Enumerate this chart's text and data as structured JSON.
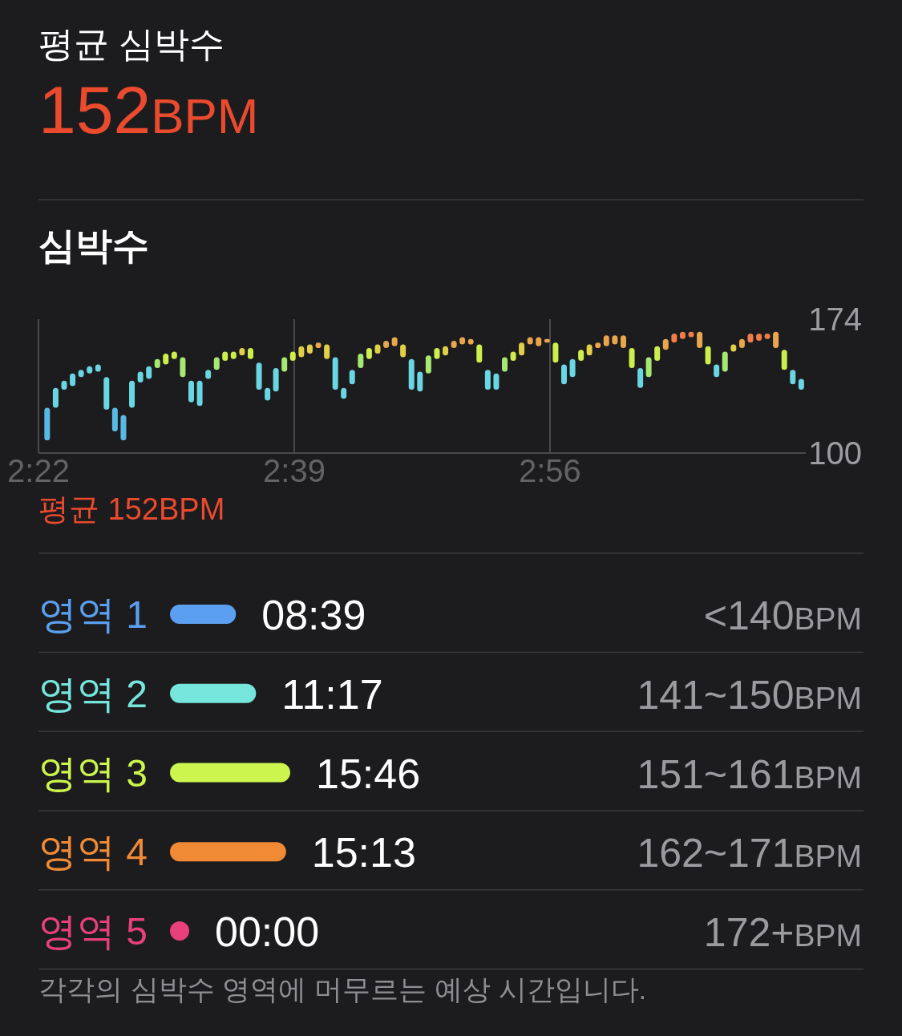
{
  "chart_data": [
    {
      "type": "other",
      "title": "평균 심박수",
      "annotations": [
        "152BPM"
      ]
    },
    {
      "type": "bar",
      "title": "심박수",
      "x": [
        2.3763,
        2.3857,
        2.3951,
        2.4045,
        2.4139,
        2.4233,
        2.4327,
        2.442,
        2.4514,
        2.4608,
        2.4702,
        2.4796,
        2.489,
        2.4984,
        2.5077,
        2.5171,
        2.5265,
        2.5359,
        2.5453,
        2.5547,
        2.5641,
        2.5734,
        2.5828,
        2.5922,
        2.6016,
        2.611,
        2.6204,
        2.6297,
        2.6391,
        2.6485,
        2.6579,
        2.6673,
        2.6767,
        2.6861,
        2.6955,
        2.7048,
        2.7142,
        2.7236,
        2.733,
        2.7424,
        2.7518,
        2.7612,
        2.7705,
        2.7799,
        2.7893,
        2.7987,
        2.8081,
        2.8175,
        2.8269,
        2.8362,
        2.8456,
        2.855,
        2.8644,
        2.8738,
        2.8832,
        2.8926,
        2.9019,
        2.9113,
        2.9207,
        2.9301,
        2.9395,
        2.9489,
        2.9583,
        2.9677,
        2.977,
        2.9864,
        2.9958,
        3.0052,
        3.0146,
        3.024,
        3.0334,
        3.0427,
        3.0521,
        3.0615,
        3.0709,
        3.0803,
        3.0897,
        3.0991,
        3.1084,
        3.1178,
        3.1272,
        3.1366,
        3.146,
        3.1554,
        3.1648,
        3.1741,
        3.1835,
        3.1929,
        3.2023,
        3.2117
      ],
      "base": [
        107,
        125,
        135,
        137,
        142,
        144,
        145,
        124,
        112,
        107,
        125,
        139,
        141,
        147,
        149,
        152,
        142,
        128,
        126,
        141,
        146,
        151,
        152,
        154,
        152,
        135,
        129,
        134,
        145,
        151,
        153,
        155,
        158,
        152,
        135,
        130,
        138,
        147,
        152,
        155,
        158,
        159,
        153,
        135,
        134,
        144,
        152,
        154,
        158,
        160,
        160,
        150,
        135,
        135,
        145,
        151,
        154,
        160,
        159,
        161,
        150,
        138,
        142,
        151,
        154,
        158,
        159,
        160,
        158,
        147,
        136,
        142,
        151,
        157,
        161,
        163,
        164,
        158,
        149,
        142,
        145,
        156,
        158,
        161,
        162,
        163,
        158,
        146,
        138,
        135
      ],
      "values": [
        18,
        11,
        5,
        7,
        4,
        4,
        4,
        18,
        13,
        14,
        15,
        6,
        7,
        5,
        6,
        4,
        11,
        12,
        14,
        5,
        7,
        5,
        4,
        4,
        6,
        15,
        7,
        13,
        8,
        5,
        6,
        5,
        3,
        8,
        18,
        6,
        8,
        8,
        6,
        5,
        4,
        5,
        7,
        17,
        11,
        10,
        6,
        5,
        4,
        4,
        3,
        10,
        11,
        9,
        8,
        5,
        7,
        4,
        5,
        2,
        11,
        11,
        10,
        6,
        6,
        3,
        6,
        5,
        7,
        11,
        11,
        11,
        8,
        6,
        5,
        4,
        3,
        9,
        10,
        7,
        11,
        4,
        5,
        5,
        4,
        3,
        9,
        11,
        8,
        6
      ],
      "colors": [
        "#5ab8e4",
        "#6ad6e2",
        "#6ad6e2",
        "#6ad6e2",
        "#6ad6e2",
        "#6ad6e2",
        "#6ad6e2",
        "#6ad6e2",
        "#5ab8e4",
        "#5ab8e4",
        "#6ad6e2",
        "#6ad6e2",
        "#6ad6e2",
        "#a6e872",
        "#cdee4c",
        "#cdee4c",
        "#a6e872",
        "#6ad6e2",
        "#6ad6e2",
        "#6ad6e2",
        "#a6e872",
        "#cdee4c",
        "#cdee4c",
        "#e2cf48",
        "#cdee4c",
        "#6ad6e2",
        "#6ad6e2",
        "#6ad6e2",
        "#a6e872",
        "#cdee4c",
        "#e2cf48",
        "#e2cf48",
        "#eaa64c",
        "#e2cf48",
        "#6ad6e2",
        "#6ad6e2",
        "#6ad6e2",
        "#a6e872",
        "#cdee4c",
        "#e2cf48",
        "#eaa64c",
        "#eaa64c",
        "#e2cf48",
        "#6ad6e2",
        "#6ad6e2",
        "#a6e872",
        "#cdee4c",
        "#e2cf48",
        "#eaa64c",
        "#eaa64c",
        "#eaa64c",
        "#cdee4c",
        "#6ad6e2",
        "#6ad6e2",
        "#a6e872",
        "#cdee4c",
        "#e2cf48",
        "#eaa64c",
        "#eaa64c",
        "#eaa64c",
        "#cdee4c",
        "#6ad6e2",
        "#6ad6e2",
        "#cdee4c",
        "#e2cf48",
        "#eaa64c",
        "#eaa64c",
        "#eaa64c",
        "#eaa64c",
        "#cdee4c",
        "#6ad6e2",
        "#a6e872",
        "#cdee4c",
        "#eaa64c",
        "#ee7d47",
        "#ee7d47",
        "#ee7d47",
        "#eaa64c",
        "#cdee4c",
        "#6ad6e2",
        "#a6e872",
        "#e2cf48",
        "#eaa64c",
        "#ee7d47",
        "#ee7d47",
        "#ee7d47",
        "#eaa64c",
        "#cdee4c",
        "#6ad6e2",
        "#6ad6e2"
      ],
      "xlim": [
        2.3667,
        3.2167
      ],
      "xticks": [
        {
          "value": 2.3667,
          "label": "2:22"
        },
        {
          "value": 2.65,
          "label": "2:39"
        },
        {
          "value": 2.9333,
          "label": "2:56"
        }
      ],
      "ylim": [
        100,
        174
      ],
      "yticks": [
        100,
        174
      ],
      "grid": "x",
      "annotations": [
        "평균 152BPM"
      ]
    },
    {
      "type": "bar",
      "orientation": "horizontal",
      "categories": [
        "영역 1",
        "영역 2",
        "영역 3",
        "영역 4",
        "영역 5"
      ],
      "values": [
        8.65,
        11.2833,
        15.7667,
        15.2167,
        0
      ],
      "colors": [
        "#5b9ff0",
        "#76e6dc",
        "#ccf54e",
        "#f08a35",
        "#e8407a"
      ],
      "value_labels": [
        "08:39",
        "11:17",
        "15:46",
        "15:13",
        "00:00"
      ],
      "annotations": [
        "<140BPM",
        "141~150BPM",
        "151~161BPM",
        "162~171BPM",
        "172+BPM",
        "각각의 심박수 영역에 머무르는 예상 시간입니다."
      ]
    }
  ]
}
